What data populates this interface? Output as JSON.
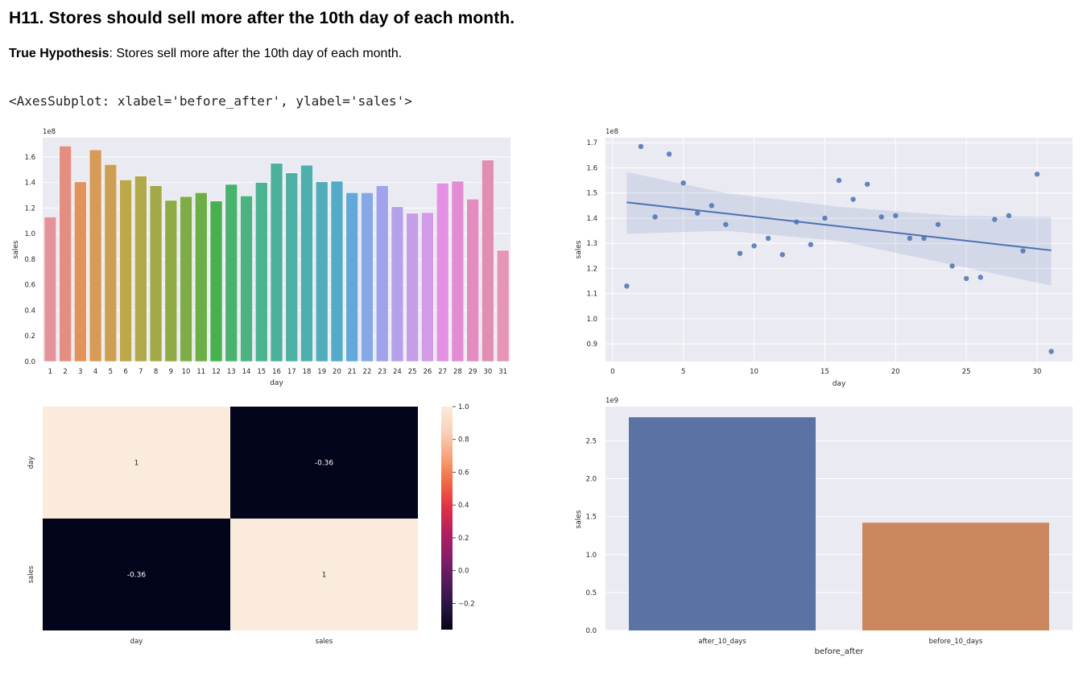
{
  "section": {
    "title": "H11. Stores should sell more after the 10th day of each month.",
    "hypothesis_label": "True Hypothesis",
    "hypothesis_text": ": Stores sell more after the 10th day of each month.",
    "output_repr": "<AxesSubplot: xlabel='before_after', ylabel='sales'>"
  },
  "chart_data": [
    {
      "type": "bar",
      "xlabel": "day",
      "ylabel": "sales",
      "scale_label": "1e8",
      "ylim": [
        0,
        1.75
      ],
      "yticks": [
        0.0,
        0.2,
        0.4,
        0.6,
        0.8,
        1.0,
        1.2,
        1.4,
        1.6
      ],
      "ytick_labels": [
        "0.0",
        "0.2",
        "0.4",
        "0.6",
        "0.8",
        "1.0",
        "1.2",
        "1.4",
        "1.6"
      ],
      "grid": true,
      "categories": [
        "1",
        "2",
        "3",
        "4",
        "5",
        "6",
        "7",
        "8",
        "9",
        "10",
        "11",
        "12",
        "13",
        "14",
        "15",
        "16",
        "17",
        "18",
        "19",
        "20",
        "21",
        "22",
        "23",
        "24",
        "25",
        "26",
        "27",
        "28",
        "29",
        "30",
        "31"
      ],
      "values": [
        1.13,
        1.685,
        1.405,
        1.655,
        1.54,
        1.42,
        1.45,
        1.375,
        1.26,
        1.29,
        1.32,
        1.255,
        1.385,
        1.295,
        1.4,
        1.55,
        1.475,
        1.535,
        1.405,
        1.41,
        1.32,
        1.32,
        1.375,
        1.21,
        1.16,
        1.165,
        1.395,
        1.41,
        1.27,
        1.575,
        0.87
      ],
      "colors": [
        "#e5939a",
        "#e48e82",
        "#e2935a",
        "#d99a56",
        "#cca050",
        "#bca848",
        "#b0a94a",
        "#a2aa48",
        "#8fab46",
        "#80ac47",
        "#6cae47",
        "#47b14e",
        "#4ab26f",
        "#4bb281",
        "#4cb28f",
        "#4cb19b",
        "#4db0a5",
        "#4eafaf",
        "#51adbb",
        "#54abc8",
        "#64a8da",
        "#86a8e5",
        "#a0a2ea",
        "#b5a1ea",
        "#c49ee7",
        "#d19be5",
        "#e490e4",
        "#e48cd2",
        "#e48bc0",
        "#e28db2",
        "#e795b6"
      ]
    },
    {
      "type": "scatter",
      "xlabel": "day",
      "ylabel": "sales",
      "scale_label": "1e8",
      "xlim": [
        -0.5,
        32.5
      ],
      "ylim": [
        0.83,
        1.72
      ],
      "xticks": [
        0,
        5,
        10,
        15,
        20,
        25,
        30
      ],
      "xtick_labels": [
        "0",
        "5",
        "10",
        "15",
        "20",
        "25",
        "30"
      ],
      "yticks": [
        0.9,
        1.0,
        1.1,
        1.2,
        1.3,
        1.4,
        1.5,
        1.6,
        1.7
      ],
      "ytick_labels": [
        "0.9",
        "1.0",
        "1.1",
        "1.2",
        "1.3",
        "1.4",
        "1.5",
        "1.6",
        "1.7"
      ],
      "grid": true,
      "x": [
        1,
        2,
        3,
        4,
        5,
        6,
        7,
        8,
        9,
        10,
        11,
        12,
        13,
        14,
        15,
        16,
        17,
        18,
        19,
        20,
        21,
        22,
        23,
        24,
        25,
        26,
        27,
        28,
        29,
        30,
        31
      ],
      "y": [
        1.13,
        1.685,
        1.405,
        1.655,
        1.54,
        1.42,
        1.45,
        1.375,
        1.26,
        1.29,
        1.32,
        1.255,
        1.385,
        1.295,
        1.4,
        1.55,
        1.475,
        1.535,
        1.405,
        1.41,
        1.32,
        1.32,
        1.375,
        1.21,
        1.16,
        1.165,
        1.395,
        1.41,
        1.27,
        1.575,
        0.87
      ],
      "regression": {
        "x": [
          1,
          31
        ],
        "y": [
          1.463,
          1.272
        ]
      },
      "confidence_band": {
        "x": [
          1,
          8,
          16,
          24,
          31
        ],
        "upper": [
          1.583,
          1.5,
          1.445,
          1.41,
          1.405
        ],
        "lower": [
          1.338,
          1.35,
          1.31,
          1.215,
          1.132
        ]
      },
      "color": "#4c72b0"
    },
    {
      "type": "heatmap",
      "rows": [
        "day",
        "sales"
      ],
      "cols": [
        "day",
        "sales"
      ],
      "values": [
        [
          1,
          -0.36
        ],
        [
          -0.36,
          1
        ]
      ],
      "annotations": [
        [
          "1",
          "-0.36"
        ],
        [
          "-0.36",
          "1"
        ]
      ],
      "vmin": -0.36,
      "vmax": 1.0,
      "colorbar_ticks": [
        1.0,
        0.8,
        0.6,
        0.4,
        0.2,
        0.0,
        -0.2
      ],
      "colorbar_tick_labels": [
        "1.0",
        "0.8",
        "0.6",
        "0.4",
        "0.2",
        "0.0",
        "−0.2"
      ],
      "colormap": [
        "#03051a",
        "#2a1445",
        "#581b5f",
        "#8a1f68",
        "#b81e5e",
        "#e13342",
        "#f26c44",
        "#f6a47b",
        "#f8d2b8",
        "#faebdd"
      ]
    },
    {
      "type": "bar",
      "xlabel": "before_after",
      "ylabel": "sales",
      "scale_label": "1e9",
      "ylim": [
        0,
        2.95
      ],
      "yticks": [
        0.0,
        0.5,
        1.0,
        1.5,
        2.0,
        2.5
      ],
      "ytick_labels": [
        "0.0",
        "0.5",
        "1.0",
        "1.5",
        "2.0",
        "2.5"
      ],
      "grid": true,
      "categories": [
        "after_10_days",
        "before_10_days"
      ],
      "values": [
        2.81,
        1.42
      ],
      "colors": [
        "#5b73a4",
        "#cb8760"
      ]
    }
  ]
}
